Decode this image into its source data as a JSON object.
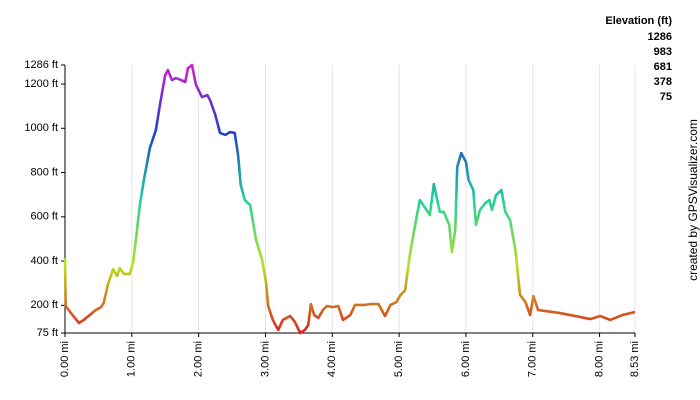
{
  "chart_data": {
    "type": "line",
    "legend_title": "Elevation (ft)",
    "credit": "created by GPSVisualizer.com",
    "color_scale": [
      {
        "value": 1286,
        "color": "#d020d0"
      },
      {
        "value": 983,
        "color": "#2040c8"
      },
      {
        "value": 681,
        "color": "#20d0a0"
      },
      {
        "value": 378,
        "color": "#b8e020"
      },
      {
        "value": 75,
        "color": "#e02020"
      }
    ],
    "x": [
      0,
      0.01,
      0.1,
      0.21,
      0.28,
      0.37,
      0.46,
      0.54,
      0.58,
      0.64,
      0.72,
      0.78,
      0.82,
      0.88,
      0.97,
      1.02,
      1.06,
      1.12,
      1.18,
      1.27,
      1.36,
      1.42,
      1.5,
      1.54,
      1.6,
      1.66,
      1.74,
      1.8,
      1.84,
      1.9,
      1.96,
      2.05,
      2.13,
      2.17,
      2.25,
      2.32,
      2.4,
      2.47,
      2.54,
      2.59,
      2.63,
      2.69,
      2.77,
      2.86,
      2.95,
      3.01,
      3.04,
      3.11,
      3.19,
      3.26,
      3.37,
      3.44,
      3.52,
      3.59,
      3.64,
      3.68,
      3.73,
      3.79,
      3.86,
      3.92,
      4.01,
      4.09,
      4.16,
      4.27,
      4.34,
      4.49,
      4.57,
      4.69,
      4.79,
      4.87,
      4.96,
      5.01,
      5.09,
      5.16,
      5.24,
      5.31,
      5.39,
      5.46,
      5.52,
      5.57,
      5.61,
      5.67,
      5.75,
      5.79,
      5.84,
      5.87,
      5.93,
      6.0,
      6.04,
      6.11,
      6.15,
      6.21,
      6.29,
      6.35,
      6.39,
      6.45,
      6.53,
      6.59,
      6.66,
      6.74,
      6.81,
      6.89,
      6.96,
      7.01,
      7.08,
      7.19,
      7.41,
      7.63,
      7.86,
      8.01,
      8.16,
      8.34,
      8.53
    ],
    "values": [
      414,
      197,
      161,
      120,
      134,
      156,
      179,
      192,
      211,
      292,
      364,
      333,
      369,
      342,
      342,
      396,
      495,
      653,
      766,
      911,
      992,
      1105,
      1241,
      1263,
      1218,
      1227,
      1218,
      1209,
      1272,
      1286,
      1196,
      1141,
      1150,
      1128,
      1060,
      979,
      970,
      983,
      979,
      879,
      744,
      676,
      653,
      495,
      405,
      301,
      197,
      134,
      89,
      134,
      152,
      125,
      75,
      89,
      111,
      206,
      156,
      143,
      179,
      197,
      192,
      197,
      134,
      156,
      202,
      202,
      206,
      206,
      152,
      202,
      215,
      242,
      269,
      427,
      563,
      676,
      640,
      608,
      748,
      676,
      622,
      622,
      563,
      441,
      540,
      825,
      888,
      848,
      766,
      721,
      563,
      631,
      662,
      676,
      631,
      698,
      721,
      622,
      586,
      450,
      247,
      215,
      156,
      242,
      179,
      174,
      165,
      152,
      138,
      152,
      134,
      156,
      170
    ],
    "xlim": [
      0,
      8.53
    ],
    "ylim": [
      75,
      1286
    ],
    "xticks": [
      {
        "value": 0,
        "label": "0.00 mi"
      },
      {
        "value": 1,
        "label": "1.00 mi"
      },
      {
        "value": 2,
        "label": "2.00 mi"
      },
      {
        "value": 3,
        "label": "3.00 mi"
      },
      {
        "value": 4,
        "label": "4.00 mi"
      },
      {
        "value": 5,
        "label": "5.00 mi"
      },
      {
        "value": 6,
        "label": "6.00 mi"
      },
      {
        "value": 7,
        "label": "7.00 mi"
      },
      {
        "value": 8,
        "label": "8.00 mi"
      },
      {
        "value": 8.53,
        "label": "8.53 mi"
      }
    ],
    "yticks": [
      {
        "value": 75,
        "label": "75 ft"
      },
      {
        "value": 200,
        "label": "200 ft"
      },
      {
        "value": 400,
        "label": "400 ft"
      },
      {
        "value": 600,
        "label": "600 ft"
      },
      {
        "value": 800,
        "label": "800 ft"
      },
      {
        "value": 1000,
        "label": "1000 ft"
      },
      {
        "value": 1200,
        "label": "1200 ft"
      },
      {
        "value": 1286,
        "label": "1286 ft"
      }
    ],
    "grid": true
  }
}
